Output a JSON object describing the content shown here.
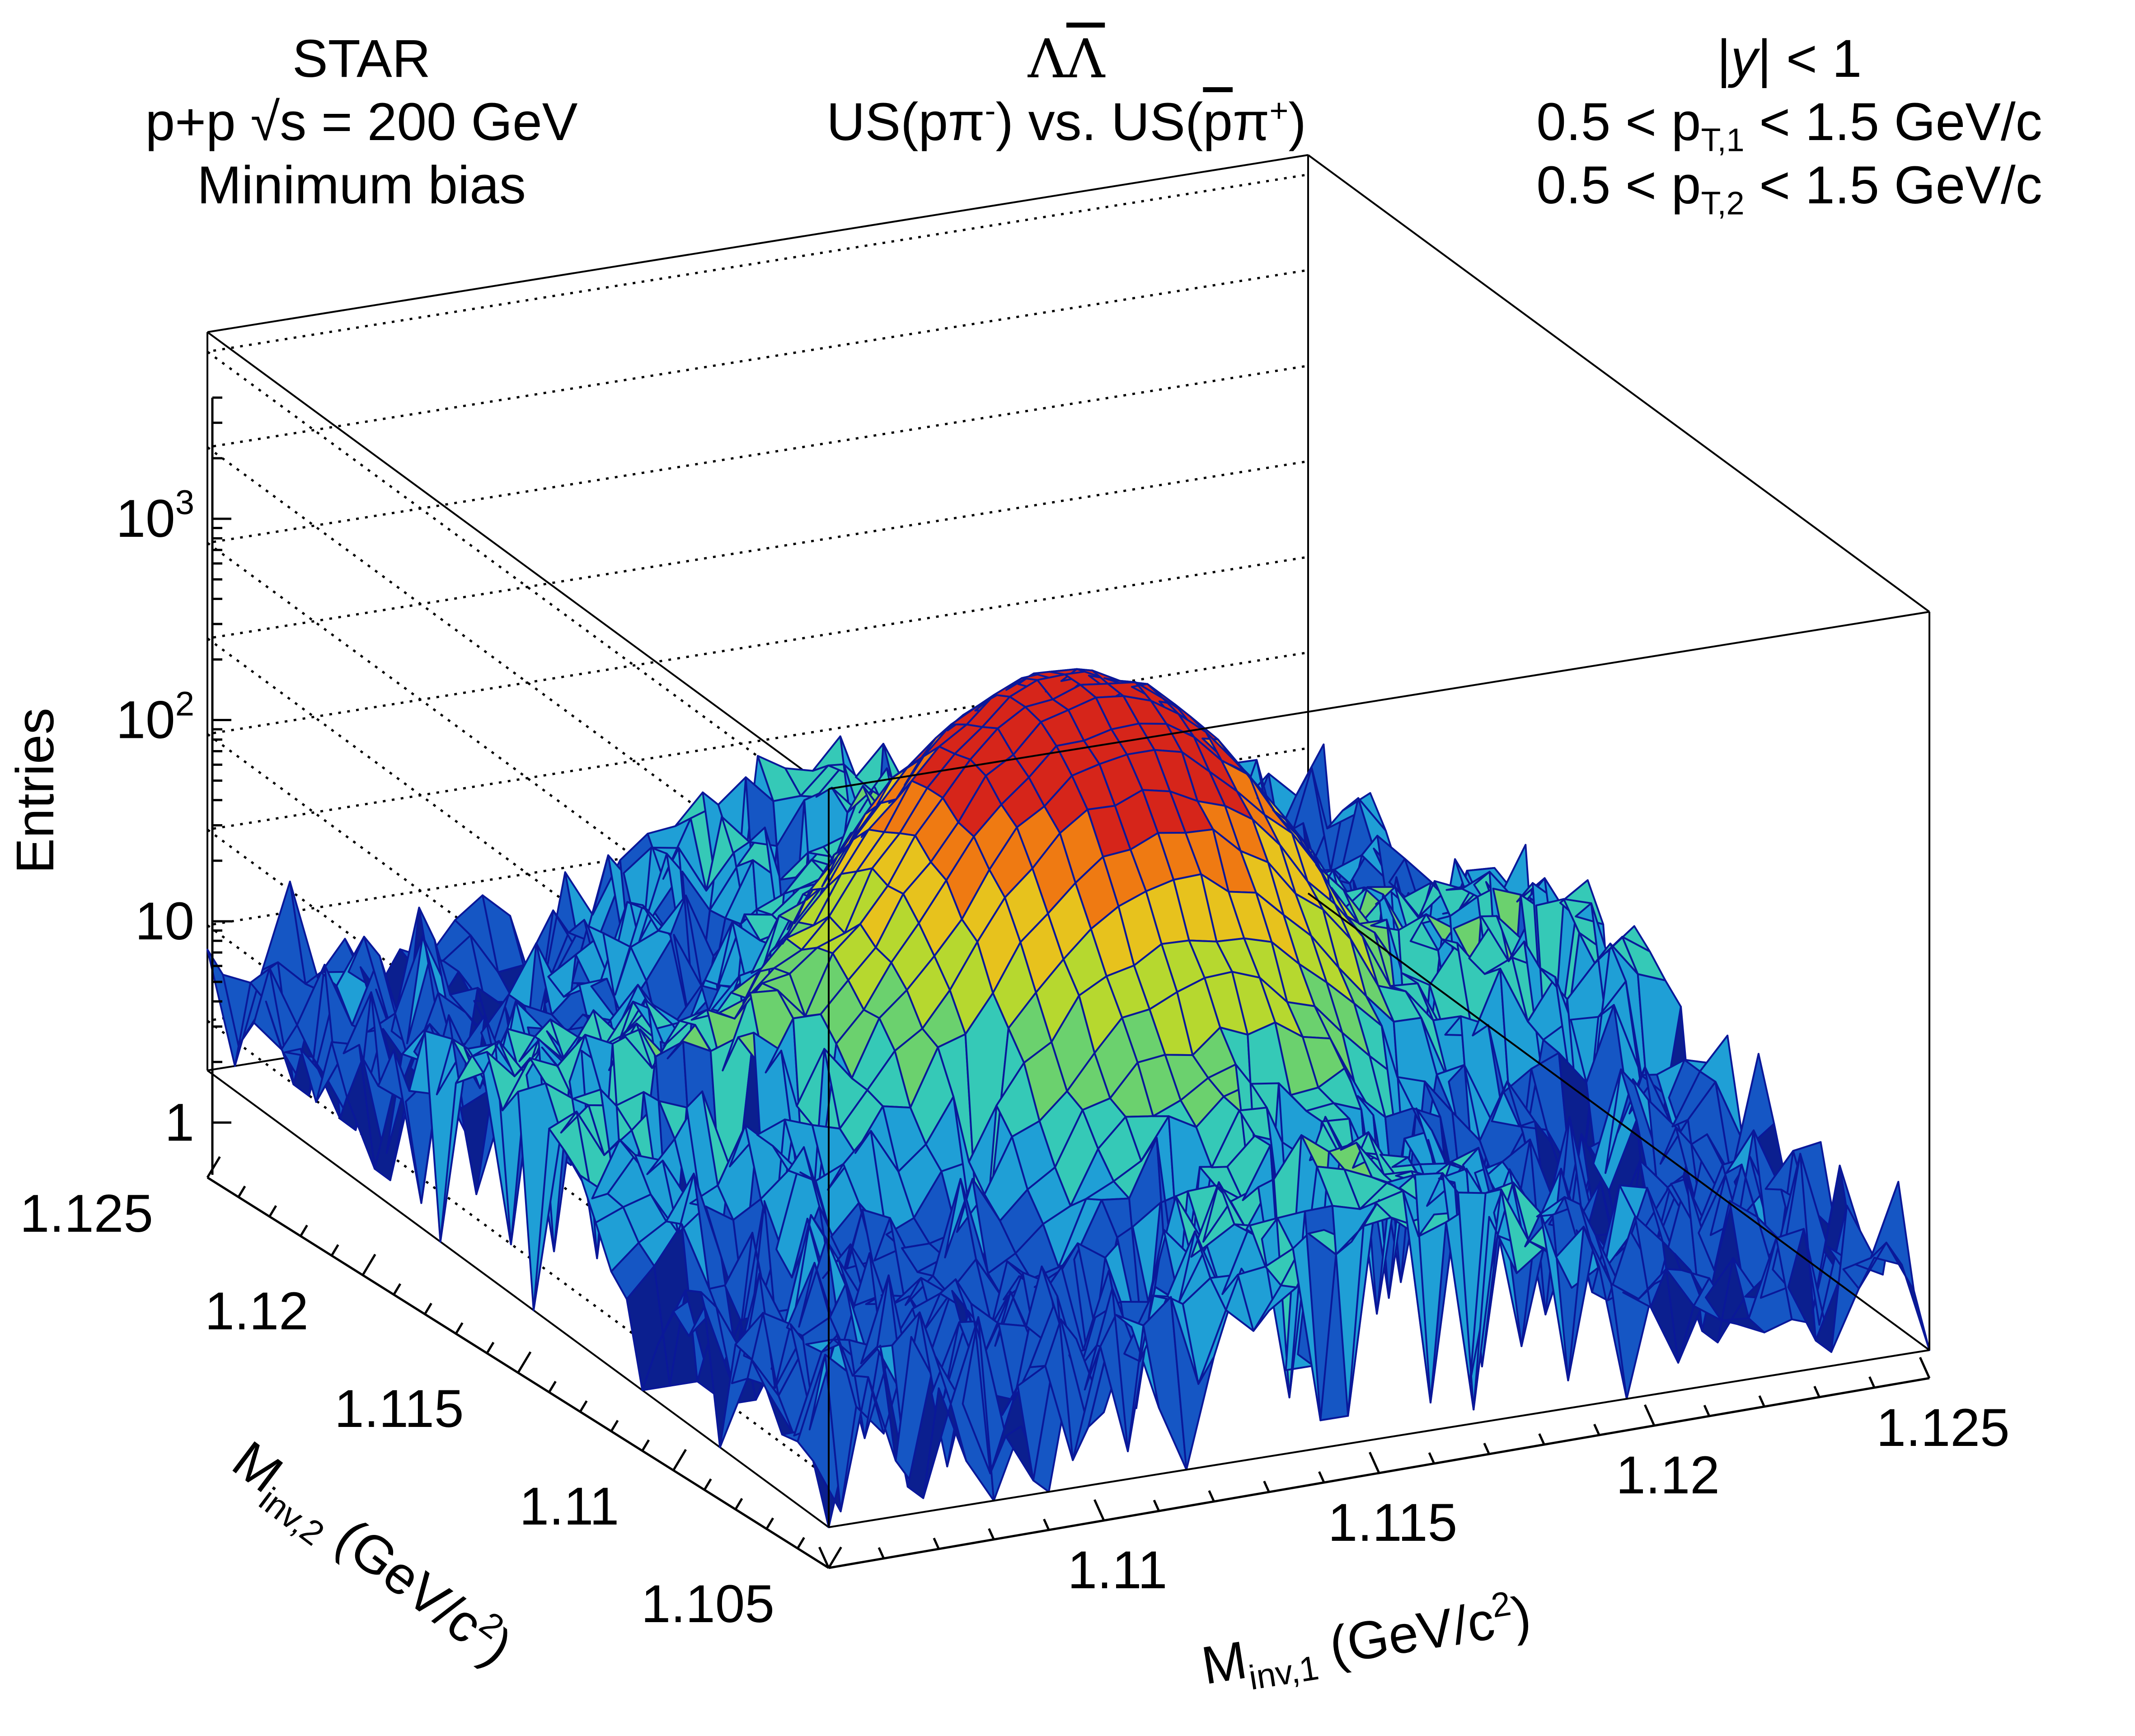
{
  "header": {
    "left": [
      "STAR",
      "p+p  √s = 200 GeV",
      "Minimum bias"
    ],
    "center_symbol": "ΛΛ",
    "center_line": "US(pπ⁻) vs. US(p̅π⁺)",
    "right": [
      "|y| < 1",
      "0.5 < p_T,1 < 1.5 GeV/c",
      "0.5 < p_T,2 < 1.5 GeV/c"
    ]
  },
  "chart_data": {
    "type": "surface3d",
    "title": "",
    "zlabel": "Entries",
    "xlabel": "M_inv,1 (GeV/c^2)",
    "ylabel": "M_inv,2 (GeV/c^2)",
    "x_range": [
      1.105,
      1.125
    ],
    "y_range": [
      1.105,
      1.125
    ],
    "z_range": [
      0.55,
      4000
    ],
    "z_log": true,
    "x_ticks": [
      "1.11",
      "1.115",
      "1.12",
      "1.125"
    ],
    "y_ticks": [
      "1.105",
      "1.11",
      "1.115",
      "1.12",
      "1.125"
    ],
    "z_ticks": [
      "1",
      "10",
      "10^2",
      "10^3"
    ],
    "grid": true,
    "bins": 40,
    "peak": {
      "x": 1.1156,
      "y": 1.1156,
      "entries": 250
    },
    "colormap": [
      "#0b1f8f",
      "#1556c4",
      "#1f9fd6",
      "#35c9b7",
      "#6bd16e",
      "#b6d82f",
      "#e7c21d",
      "#ef7a12",
      "#d6251a"
    ]
  }
}
